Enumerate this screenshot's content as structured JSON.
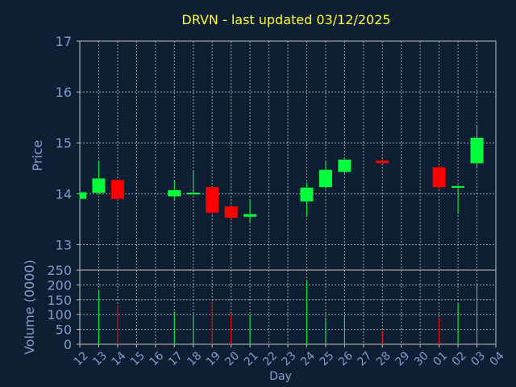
{
  "chart_data": {
    "type": "candlestick",
    "title": "DRVN - last updated 03/12/2025",
    "xlabel": "Day",
    "price_panel": {
      "ylabel": "Price",
      "ylim": [
        12.5,
        17.0
      ],
      "yticks": [
        "17",
        "16",
        "15",
        "14",
        "13"
      ],
      "ytick_values": [
        17,
        16,
        15,
        14,
        13
      ]
    },
    "volume_panel": {
      "ylabel": "Volume (0000)",
      "ylim": [
        0,
        250
      ],
      "yticks": [
        "250",
        "200",
        "150",
        "100",
        "50",
        "0"
      ],
      "ytick_values": [
        250,
        200,
        150,
        100,
        50,
        0
      ]
    },
    "x_ticks": [
      "12",
      "13",
      "14",
      "15",
      "16",
      "17",
      "18",
      "19",
      "20",
      "21",
      "22",
      "23",
      "24",
      "25",
      "26",
      "27",
      "28",
      "29",
      "30",
      "01",
      "02",
      "03",
      "04"
    ],
    "grid": true,
    "colors": {
      "background": "#0f1f33",
      "up": "#00ff3c",
      "down": "#ff0000",
      "title": "#ffff33",
      "axis_text": "#7f9ccc",
      "grid": "#c0c0c0",
      "plot_frame": "#c0c0c0"
    },
    "candles": [
      {
        "x": 0,
        "open": 13.9,
        "high": 14.05,
        "low": 13.88,
        "close": 14.03,
        "volume": 0
      },
      {
        "x": 1,
        "open": 14.02,
        "high": 14.65,
        "low": 13.98,
        "close": 14.3,
        "volume": 180
      },
      {
        "x": 2,
        "open": 14.27,
        "high": 14.27,
        "low": 13.88,
        "close": 13.9,
        "volume": 130
      },
      {
        "x": 5,
        "open": 13.95,
        "high": 14.25,
        "low": 13.88,
        "close": 14.07,
        "volume": 110
      },
      {
        "x": 6,
        "open": 14.0,
        "high": 14.45,
        "low": 13.98,
        "close": 14.02,
        "volume": 95
      },
      {
        "x": 7,
        "open": 14.13,
        "high": 14.13,
        "low": 13.58,
        "close": 13.63,
        "volume": 145
      },
      {
        "x": 8,
        "open": 13.75,
        "high": 13.75,
        "low": 13.5,
        "close": 13.53,
        "volume": 100
      },
      {
        "x": 9,
        "open": 13.55,
        "high": 13.88,
        "low": 13.45,
        "close": 13.6,
        "volume": 100
      },
      {
        "x": 12,
        "open": 13.85,
        "high": 14.22,
        "low": 13.55,
        "close": 14.12,
        "volume": 215
      },
      {
        "x": 13,
        "open": 14.13,
        "high": 14.62,
        "low": 14.1,
        "close": 14.47,
        "volume": 90
      },
      {
        "x": 14,
        "open": 14.43,
        "high": 14.68,
        "low": 14.4,
        "close": 14.67,
        "volume": 100
      },
      {
        "x": 16,
        "open": 14.65,
        "high": 14.68,
        "low": 14.6,
        "close": 14.6,
        "volume": 45
      },
      {
        "x": 19,
        "open": 14.52,
        "high": 14.55,
        "low": 14.1,
        "close": 14.13,
        "volume": 90
      },
      {
        "x": 20,
        "open": 14.13,
        "high": 14.17,
        "low": 13.6,
        "close": 14.15,
        "volume": 140
      },
      {
        "x": 21,
        "open": 14.6,
        "high": 15.35,
        "low": 14.5,
        "close": 15.1,
        "volume": 205
      }
    ]
  }
}
